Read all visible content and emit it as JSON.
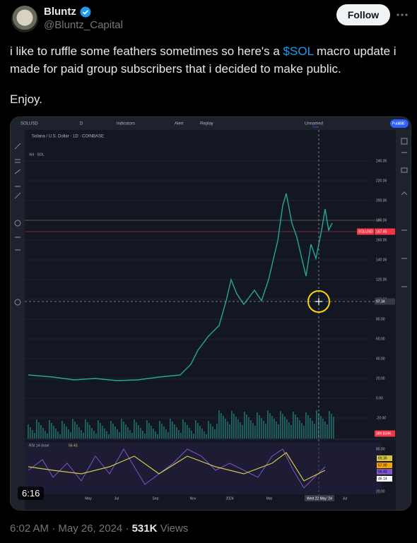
{
  "tweet": {
    "author": {
      "name": "Bluntz",
      "handle": "@Bluntz_Capital"
    },
    "follow_button": "Follow",
    "text": {
      "before": "i like to ruffle some feathers sometimes so here's a ",
      "cashtag": "$SOL",
      "after": " macro update i made for paid group subscribers that i decided to make public.",
      "closing": "Enjoy."
    },
    "timestamp": "6:02 AM · May 26, 2024 · ",
    "views": {
      "count": "531K",
      "label": " Views"
    }
  },
  "video": {
    "duration": "6:16",
    "chart": {
      "toolbar": {
        "symbol": "SOLUSD",
        "interval": "D",
        "indicators": "Indicators",
        "alert": "Alert",
        "replay": "Replay",
        "layout_name": "Unnamed",
        "save": "Save",
        "publish": "Publish",
        "currency": "USD"
      },
      "legend": {
        "title": "Solana / U.S. Dollar · 1D · COINBASE",
        "volume": "Vol · SOL"
      },
      "price_ticks": [
        "240.00",
        "220.00",
        "200.00",
        "180.00",
        "160.00",
        "140.00",
        "120.00",
        "100.00",
        "80.00",
        "60.00",
        "40.00",
        "20.00",
        "0.00",
        "-20.00"
      ],
      "price_tags": {
        "symbol": "SOLUSD",
        "last": "167.45",
        "crosshair": "97.34",
        "volume": "389.834K"
      },
      "time_labels": [
        "May",
        "Jul",
        "Sep",
        "Nov",
        "2024",
        "Mar",
        "Jul"
      ],
      "crosshair_date": "Wed 22 May '24",
      "rsi": {
        "label": "RSI 14 close",
        "value": "56.43",
        "ticks": [
          "80.00",
          "40.00",
          "20.00"
        ],
        "tags": [
          "69.30",
          "57.90",
          "56.43",
          "46.14"
        ]
      }
    }
  }
}
